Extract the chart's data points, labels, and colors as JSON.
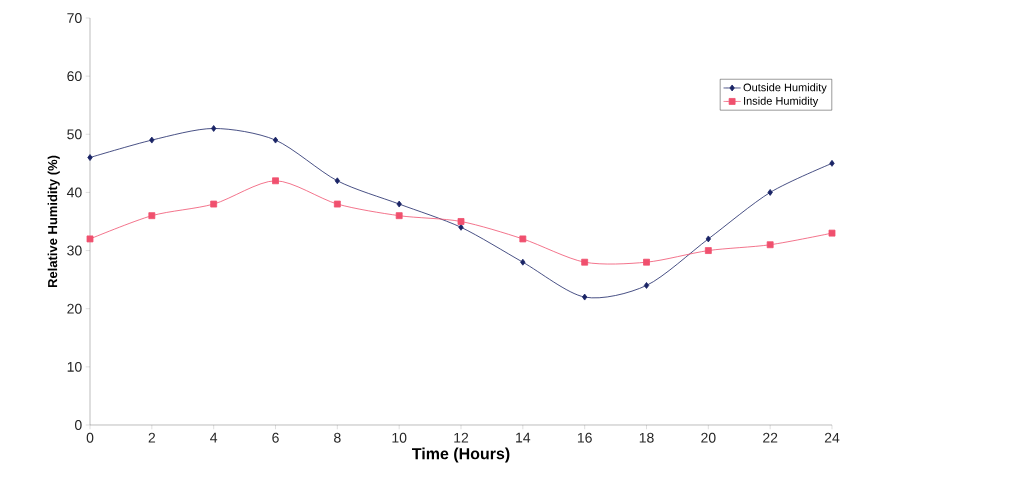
{
  "chart_data": {
    "type": "line",
    "xlabel": "Time (Hours)",
    "ylabel": "Relative Humidity (%)",
    "x": [
      0,
      2,
      4,
      6,
      8,
      10,
      12,
      14,
      16,
      18,
      20,
      22,
      24
    ],
    "series": [
      {
        "name": "Outside Humidity",
        "color": "#1a2466",
        "marker": "diamond",
        "values": [
          46,
          49,
          51,
          49,
          42,
          38,
          34,
          28,
          22,
          24,
          32,
          40,
          45
        ]
      },
      {
        "name": "Inside Humidity",
        "color": "#f0506e",
        "marker": "square",
        "values": [
          32,
          36,
          38,
          42,
          38,
          36,
          35,
          32,
          28,
          28,
          30,
          31,
          33
        ]
      }
    ],
    "xlim": [
      0,
      24
    ],
    "xticks": [
      0,
      2,
      4,
      6,
      8,
      10,
      12,
      14,
      16,
      18,
      20,
      22,
      24
    ],
    "ylim": [
      0,
      70
    ],
    "yticks": [
      0,
      10,
      20,
      30,
      40,
      50,
      60,
      70
    ],
    "grid": false,
    "legend": "top right",
    "line_style": "solid"
  }
}
